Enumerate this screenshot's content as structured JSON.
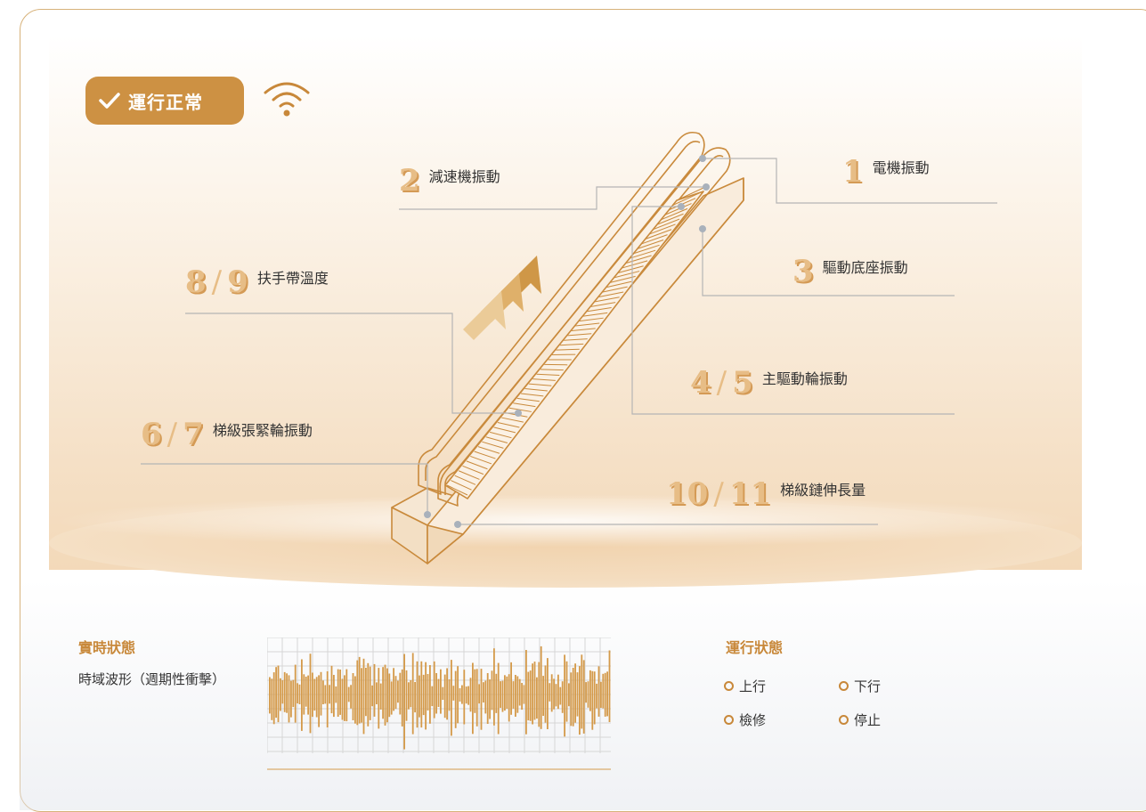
{
  "header": {
    "status_badge": "運行正常",
    "badge_icon": "check-icon",
    "signal_icon": "wifi-icon"
  },
  "sensors": [
    {
      "id": "1",
      "label": "電機振動"
    },
    {
      "id": "2",
      "label": "減速機振動"
    },
    {
      "id": "3",
      "label": "驅動底座振動"
    },
    {
      "id": "4",
      "id2": "5",
      "label": "主驅動輪振動"
    },
    {
      "id": "6",
      "id2": "7",
      "label": "梯級張緊輪振動"
    },
    {
      "id": "8",
      "id2": "9",
      "label": "扶手帶溫度"
    },
    {
      "id": "10",
      "id2": "11",
      "label": "梯級鏈伸長量"
    }
  ],
  "id_separator": "/",
  "realtime": {
    "title": "實時狀態",
    "subtitle": "時域波形（週期性衝擊）"
  },
  "run_status": {
    "title": "運行狀態",
    "items": [
      "上行",
      "下行",
      "檢修",
      "停止"
    ]
  },
  "colors": {
    "accent": "#cd9143",
    "wave": "#d49a4a",
    "line": "#b5b5b5"
  }
}
